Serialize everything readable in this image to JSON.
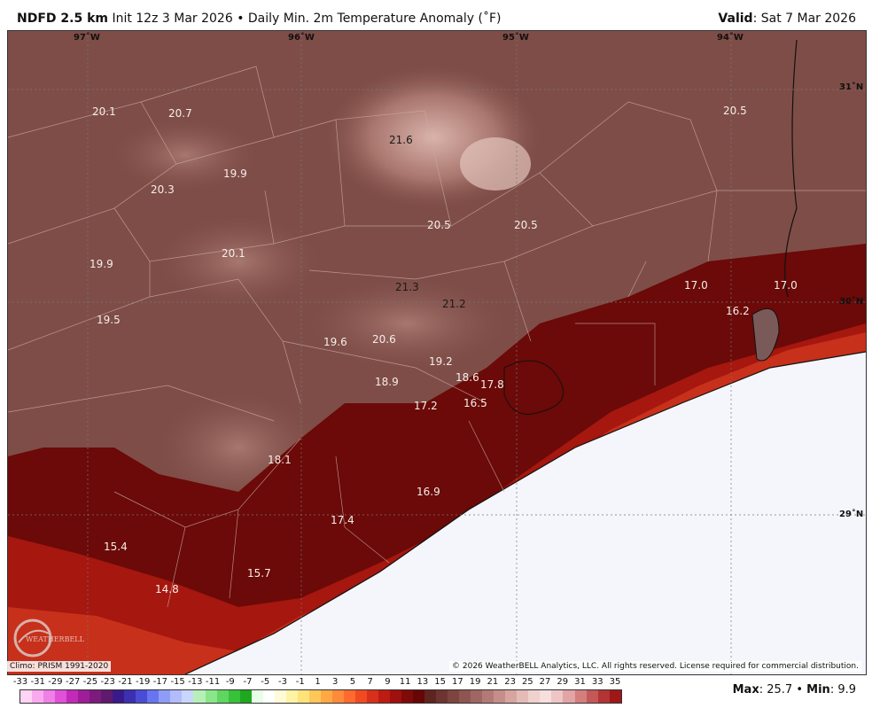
{
  "header": {
    "model": "NDFD 2.5 km",
    "init": "Init 12z 3 Mar 2026",
    "separator": "•",
    "product": "Daily Min. 2m Temperature Anomaly (˚F)",
    "valid_label": "Valid",
    "valid_value": ": Sat 7 Mar 2026"
  },
  "map": {
    "longitude_labels": [
      "97˚W",
      "96˚W",
      "95˚W",
      "94˚W"
    ],
    "latitude_labels": [
      "31˚N",
      "30˚N",
      "29˚N"
    ],
    "values": [
      {
        "text": "20.1",
        "dark": false
      },
      {
        "text": "20.7",
        "dark": false
      },
      {
        "text": "21.6",
        "dark": true
      },
      {
        "text": "20.5",
        "dark": false
      },
      {
        "text": "19.9",
        "dark": false
      },
      {
        "text": "20.3",
        "dark": false
      },
      {
        "text": "20.5",
        "dark": false
      },
      {
        "text": "20.5",
        "dark": false
      },
      {
        "text": "19.9",
        "dark": false
      },
      {
        "text": "20.1",
        "dark": false
      },
      {
        "text": "21.3",
        "dark": true
      },
      {
        "text": "21.2",
        "dark": true
      },
      {
        "text": "17.0",
        "dark": false
      },
      {
        "text": "17.0",
        "dark": false
      },
      {
        "text": "16.2",
        "dark": false
      },
      {
        "text": "19.5",
        "dark": false
      },
      {
        "text": "19.6",
        "dark": false
      },
      {
        "text": "20.6",
        "dark": false
      },
      {
        "text": "19.2",
        "dark": false
      },
      {
        "text": "18.6",
        "dark": false
      },
      {
        "text": "17.8",
        "dark": false
      },
      {
        "text": "18.9",
        "dark": false
      },
      {
        "text": "17.2",
        "dark": false
      },
      {
        "text": "16.5",
        "dark": false
      },
      {
        "text": "18.1",
        "dark": false
      },
      {
        "text": "16.9",
        "dark": false
      },
      {
        "text": "17.4",
        "dark": false
      },
      {
        "text": "15.4",
        "dark": false
      },
      {
        "text": "15.7",
        "dark": false
      },
      {
        "text": "14.8",
        "dark": false
      }
    ],
    "logo_text": "WEATHERBELL"
  },
  "footer": {
    "climo": "Climo: PRISM 1991-2020",
    "copyright": "© 2026 WeatherBELL Analytics, LLC. All rights reserved. License required for commercial distribution.",
    "max_label": "Max",
    "max_value": ": 25.7",
    "bullet": "•",
    "min_label": "Min",
    "min_value": ": 9.9"
  },
  "colorbar": {
    "ticks": [
      "-33",
      "-31",
      "-29",
      "-27",
      "-25",
      "-23",
      "-21",
      "-19",
      "-17",
      "-15",
      "-13",
      "-11",
      "-9",
      "-7",
      "-5",
      "-3",
      "-1",
      "1",
      "3",
      "5",
      "7",
      "9",
      "11",
      "13",
      "15",
      "17",
      "19",
      "21",
      "23",
      "25",
      "27",
      "29",
      "31",
      "33",
      "35"
    ],
    "colors": [
      "#ffd4f4",
      "#f9aaee",
      "#f07fe6",
      "#e150d8",
      "#c42ab9",
      "#9f1d98",
      "#7d1a7e",
      "#5f1a6e",
      "#3a1a8a",
      "#3c2fb0",
      "#4a4cd6",
      "#6874f0",
      "#8f9cf7",
      "#b2bcfb",
      "#c9d5fd",
      "#b6f0b6",
      "#8be58b",
      "#5fd65f",
      "#38c238",
      "#1fa81f",
      "#e6ffe6",
      "#ffffff",
      "#fffbd8",
      "#fff3a4",
      "#ffe27a",
      "#ffc757",
      "#ffa844",
      "#ff8a3a",
      "#ff6a2e",
      "#f04a22",
      "#d8301a",
      "#be1c12",
      "#a0100c",
      "#800a08",
      "#660606",
      "#5e2420",
      "#6e3430",
      "#7e4440",
      "#8f5550",
      "#a06662",
      "#b37a75",
      "#c68e89",
      "#d6a5a0",
      "#e4bbb7",
      "#f0d1ce",
      "#f6dfdd",
      "#eec6c6",
      "#e2a4a4",
      "#d47e7e",
      "#c45858",
      "#b33434",
      "#9e1818"
    ]
  }
}
